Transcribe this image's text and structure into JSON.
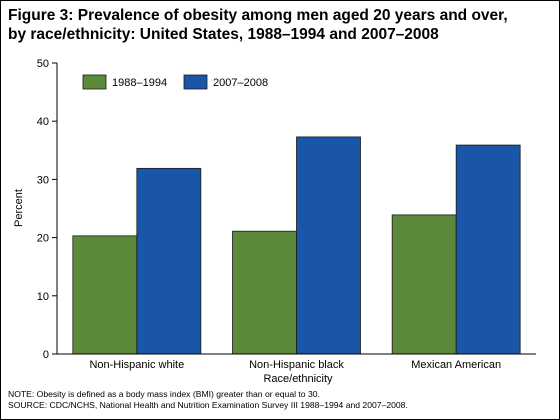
{
  "title_lines": [
    "Figure 3: Prevalence of obesity among men aged 20 years and over,",
    "by race/ethnicity: United States, 1988–1994 and 2007–2008"
  ],
  "colors": {
    "series_1": "#5a8a3a",
    "series_2": "#1a56a8",
    "bar_stroke": "#1a1a1a"
  },
  "chart_data": {
    "type": "bar",
    "categories": [
      "Non-Hispanic white",
      "Non-Hispanic black",
      "Mexican American"
    ],
    "series": [
      {
        "name": "1988–1994",
        "values": [
          20.3,
          21.1,
          23.9
        ]
      },
      {
        "name": "2007–2008",
        "values": [
          31.9,
          37.3,
          35.9
        ]
      }
    ],
    "xlabel": "Race/ethnicity",
    "ylabel": "Percent",
    "ylim": [
      0,
      50
    ],
    "yticks": [
      0,
      10,
      20,
      30,
      40,
      50
    ],
    "grid": false,
    "legend_position": "top-left"
  },
  "notes": [
    "NOTE: Obesity is defined as a body mass index (BMI) greater than or equal to 30.",
    "SOURCE: CDC/NCHS, National Health and Nutrition Examination Survey III 1988–1994 and 2007–2008."
  ]
}
